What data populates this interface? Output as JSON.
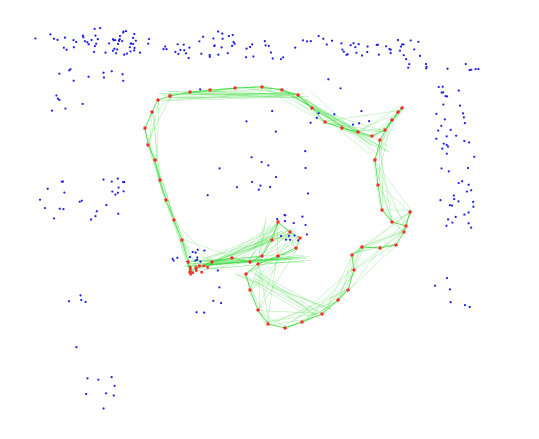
{
  "colors": {
    "background": "#ffffff",
    "map_points": "#1f1fe6",
    "keyframe_poses": "#ff2a2a",
    "covisibility_edges": "#2cd62c"
  }
}
